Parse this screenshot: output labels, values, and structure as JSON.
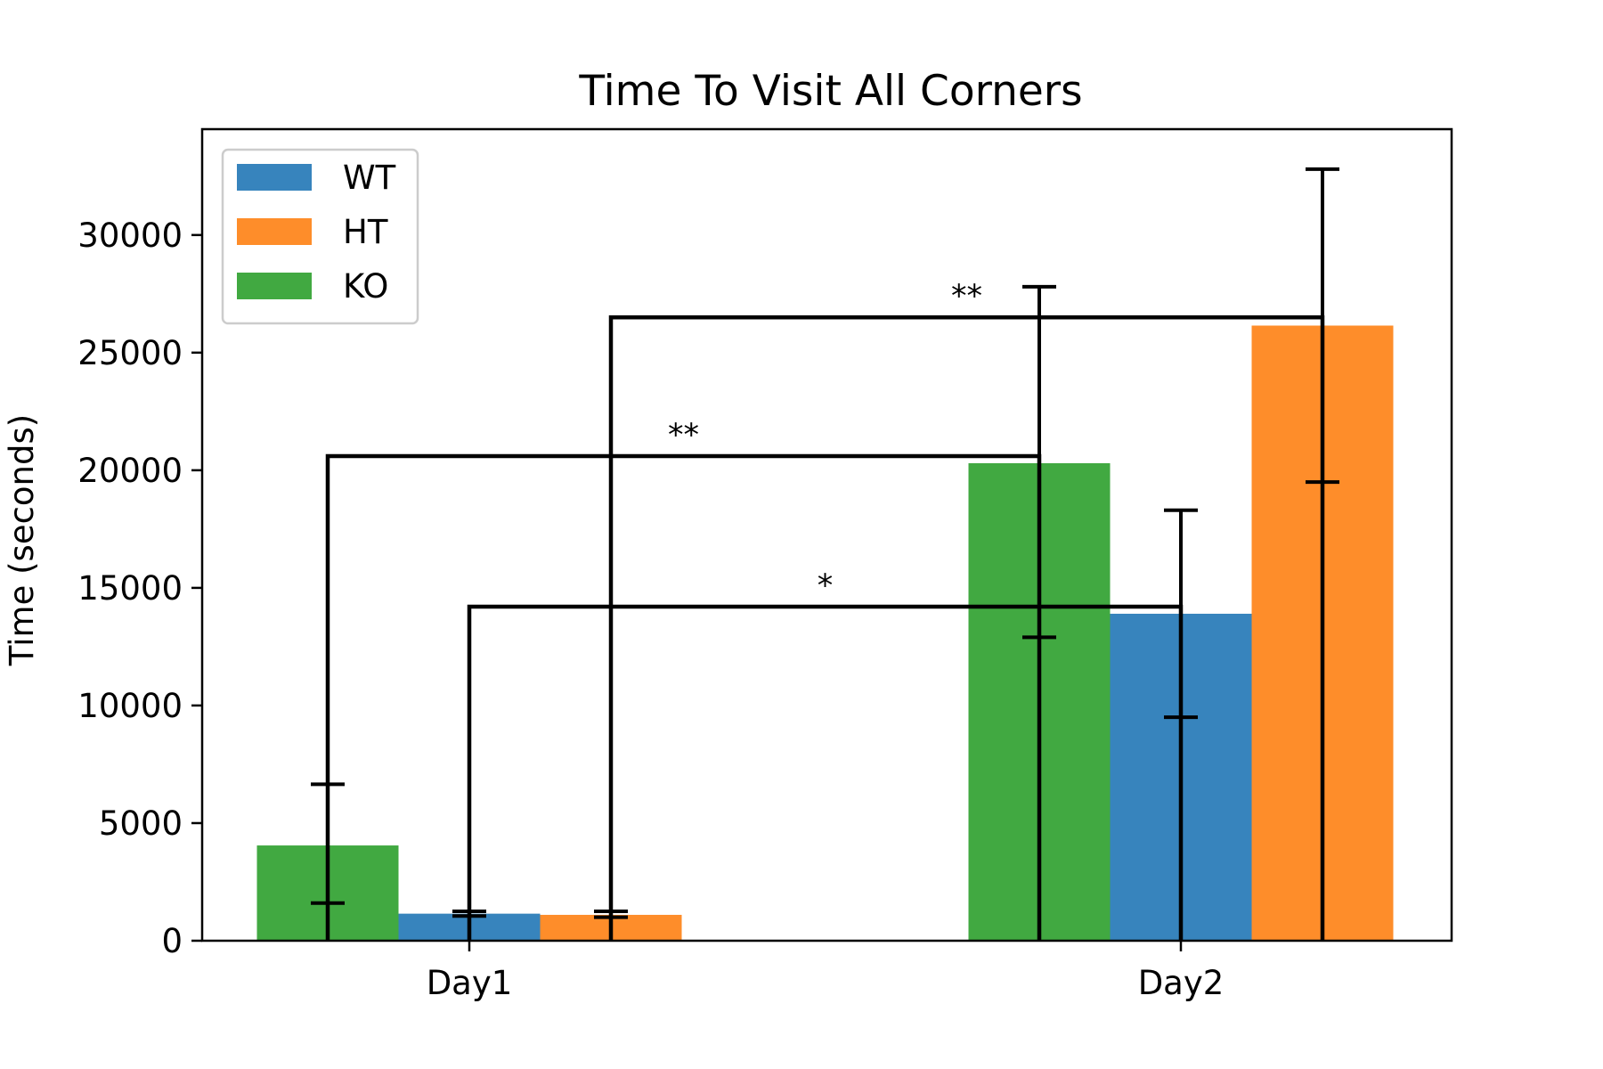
{
  "chart_data": {
    "type": "bar",
    "title": "Time To Visit All Corners",
    "xlabel": "",
    "ylabel": "Time (seconds)",
    "ylim": [
      0,
      34500
    ],
    "yticks": [
      0,
      5000,
      10000,
      15000,
      20000,
      25000,
      30000
    ],
    "categories": [
      "Day1",
      "Day2"
    ],
    "series": [
      {
        "name": "KO",
        "color": "#41a941",
        "values": [
          4050,
          20300
        ],
        "err_low": [
          1600,
          12900
        ],
        "err_high": [
          6650,
          27800
        ]
      },
      {
        "name": "WT",
        "color": "#3784bd",
        "values": [
          1150,
          13900
        ],
        "err_low": [
          1050,
          9500
        ],
        "err_high": [
          1250,
          18300
        ]
      },
      {
        "name": "HT",
        "color": "#fe8d2a",
        "values": [
          1100,
          26150
        ],
        "err_low": [
          1000,
          19500
        ],
        "err_high": [
          1250,
          32800
        ]
      }
    ],
    "legend": {
      "placement": "top-left",
      "order": [
        "WT",
        "HT",
        "KO"
      ]
    },
    "significance": [
      {
        "label": "**",
        "from_category": "Day1",
        "from_series": "KO",
        "to_category": "Day2",
        "to_series": "KO",
        "y": 20600
      },
      {
        "label": "*",
        "from_category": "Day1",
        "from_series": "WT",
        "to_category": "Day2",
        "to_series": "WT",
        "y": 14200
      },
      {
        "label": "**",
        "from_category": "Day1",
        "from_series": "HT",
        "to_category": "Day2",
        "to_series": "HT",
        "y": 26500
      }
    ],
    "grid": false
  }
}
